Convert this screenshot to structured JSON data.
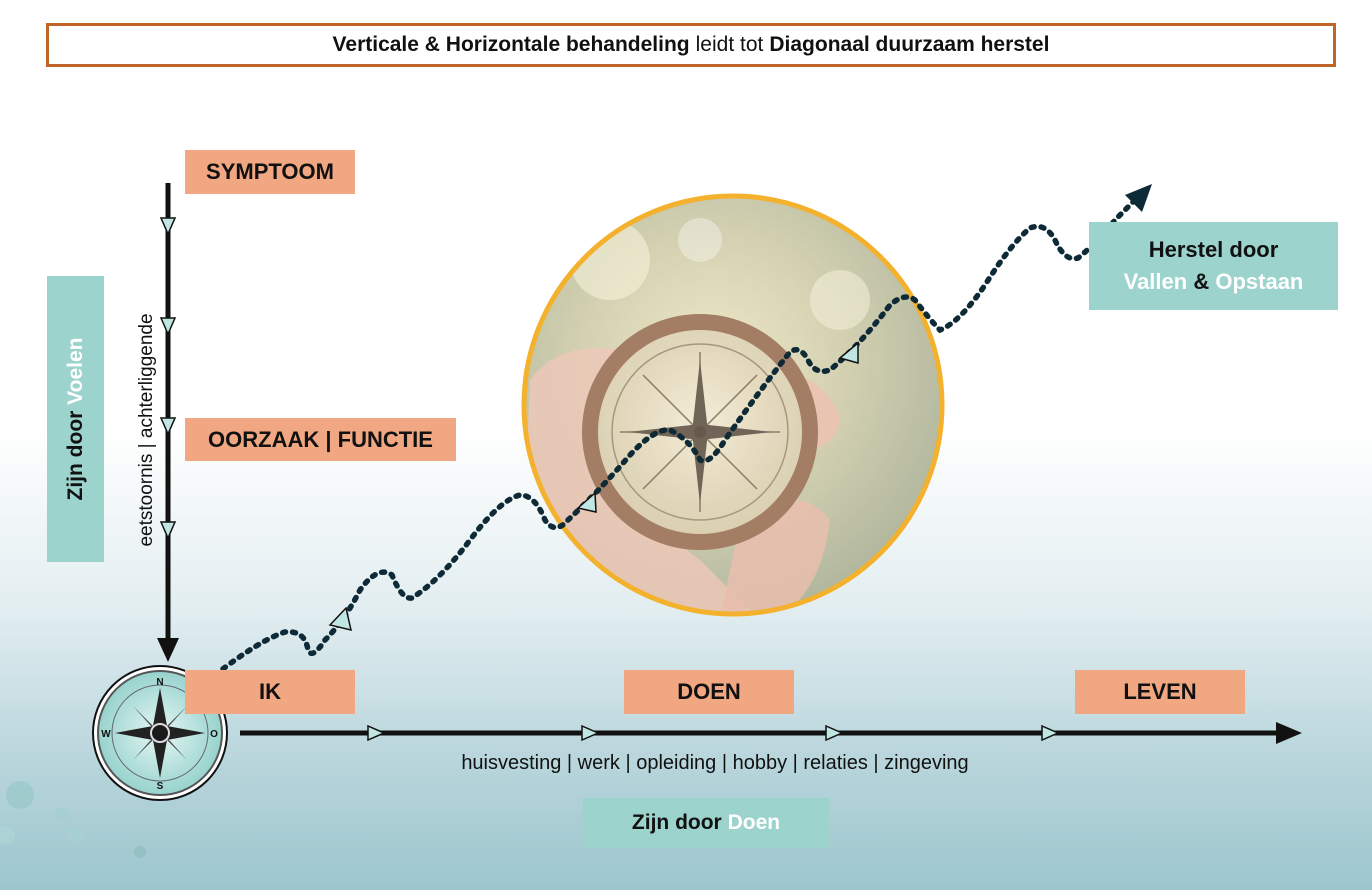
{
  "title": {
    "part1": "Verticale & Horizontale behandeling",
    "part2": "leidt tot",
    "part3": "Diagonaal duurzaam herstel"
  },
  "vertical": {
    "symptoom": "SYMPTOOM",
    "oorzaak": "OORZAAK | FUNCTIE",
    "axis_label": "eetstoornis | achterliggende",
    "side_label_prefix": "Zijn door",
    "side_label_accent": "Voelen"
  },
  "horizontal": {
    "ik": "IK",
    "doen": "DOEN",
    "leven": "LEVEN",
    "axis_label": "huisvesting | werk | opleiding | hobby | relaties | zingeving",
    "bottom_label_prefix": "Zijn door",
    "bottom_label_accent": "Doen"
  },
  "diagonal": {
    "herstel_line1": "Herstel door",
    "herstel_vallen": "Vallen",
    "herstel_amp": "&",
    "herstel_opstaan": "Opstaan"
  },
  "compass_rose": {
    "n": "N",
    "o": "O",
    "s": "S",
    "w": "W"
  },
  "colors": {
    "title_border": "#c0642a",
    "salmon": "#f2a783",
    "teal": "#9dd3cd",
    "circle_ring": "#f3b12e",
    "path": "#0d2a36"
  }
}
